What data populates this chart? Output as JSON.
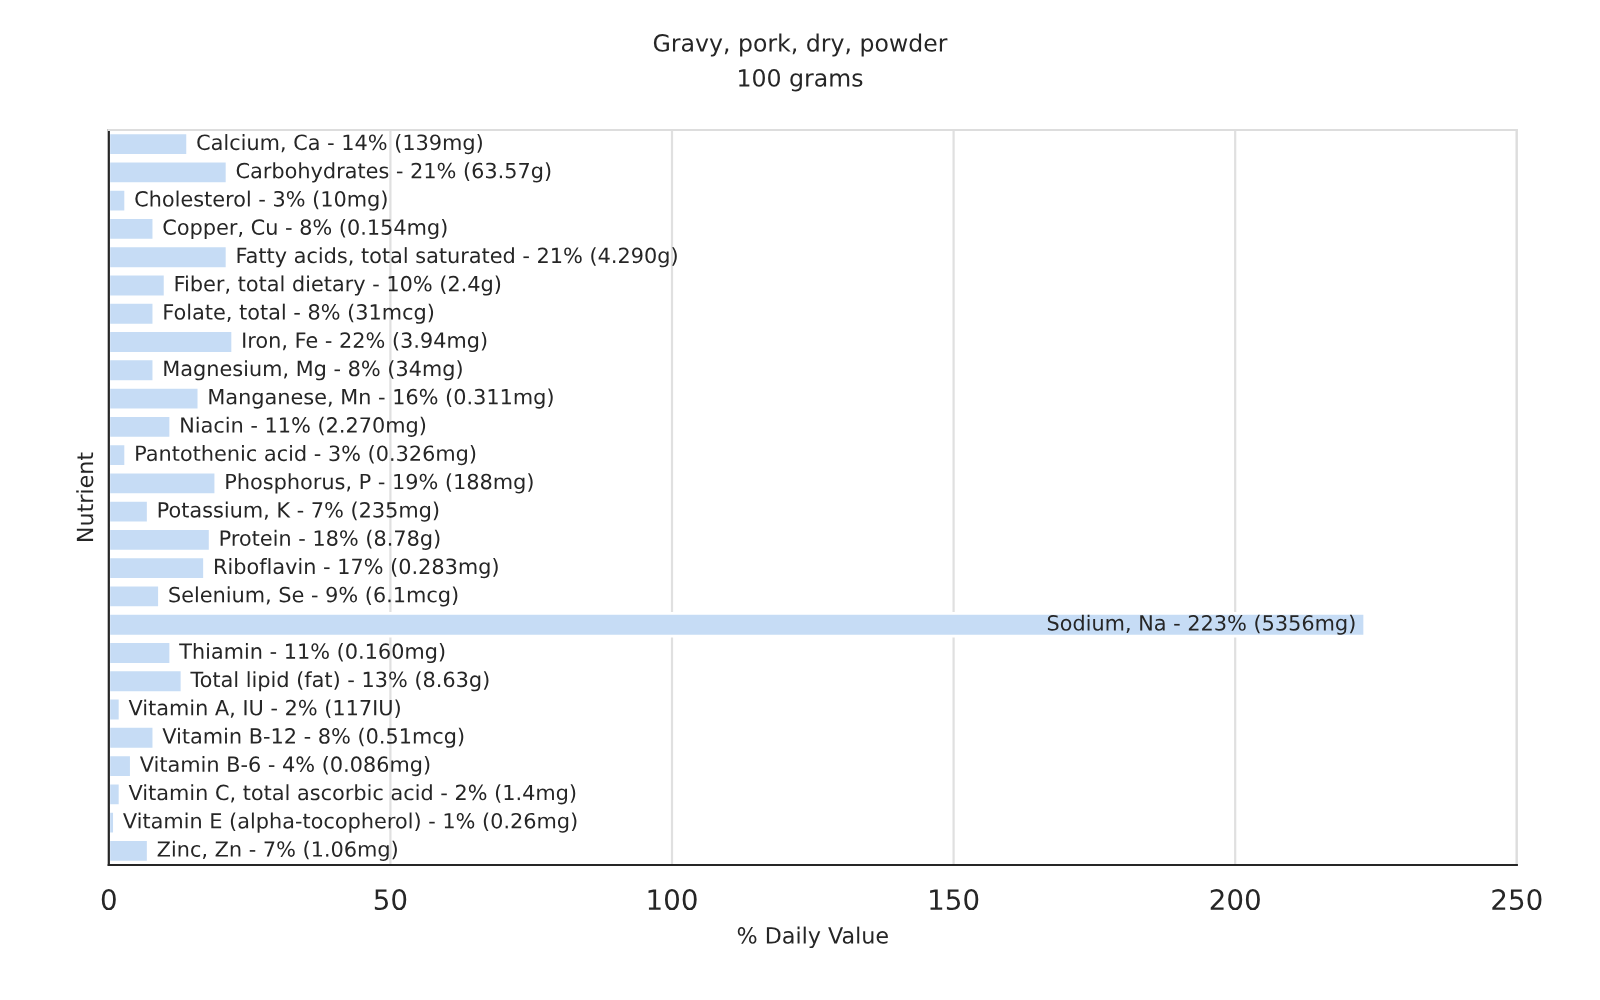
{
  "chart_data": {
    "type": "bar",
    "orientation": "horizontal",
    "title": "Gravy, pork, dry, powder",
    "subtitle": "100 grams",
    "xlabel": "% Daily Value",
    "ylabel": "Nutrient",
    "categories": [
      "Calcium, Ca -",
      "Carbohydrates -",
      "Cholesterol -",
      "Copper, Cu -",
      "Fatty acids, total saturated -",
      "Fiber, total dietary -",
      "Folate, total -",
      "Iron, Fe -",
      "Magnesium, Mg -",
      "Manganese, Mn -",
      "Niacin -",
      "Pantothenic acid -",
      "Phosphorus, P -",
      "Potassium, K -",
      "Protein -",
      "Riboflavin -",
      "Selenium, Se -",
      "Sodium, Na -",
      "Thiamin -",
      "Total lipid (fat) -",
      "Vitamin A, IU -",
      "Vitamin B-12 -",
      "Vitamin B-6 -",
      "Vitamin C, total ascorbic acid -",
      "Vitamin E (alpha-tocopherol) -",
      "Zinc, Zn -"
    ],
    "values": [
      14,
      21,
      3,
      8,
      21,
      10,
      8,
      22,
      8,
      16,
      11,
      3,
      19,
      7,
      18,
      17,
      9,
      223,
      11,
      13,
      2,
      8,
      4,
      2,
      1,
      7
    ],
    "value_labels": [
      "14% (139mg)",
      "21% (63.57g)",
      "3% (10mg)",
      "8% (0.154mg)",
      "21% (4.290g)",
      "10% (2.4g)",
      "8% (31mcg)",
      "22% (3.94mg)",
      "8% (34mg)",
      "16% (0.311mg)",
      "11% (2.270mg)",
      "3% (0.326mg)",
      "19% (188mg)",
      "7% (235mg)",
      "18% (8.78g)",
      "17% (0.283mg)",
      "9% (6.1mcg)",
      "223% (5356mg)",
      "11% (0.160mg)",
      "13% (8.63g)",
      "2% (117IU)",
      "8% (0.51mcg)",
      "4% (0.086mg)",
      "2% (1.4mg)",
      "1% (0.26mg)",
      "7% (1.06mg)"
    ],
    "color": "#c6dcf5",
    "xlim": [
      0,
      250
    ],
    "xticks": [
      0,
      50,
      100,
      150,
      200,
      250
    ],
    "grid": "x",
    "tick_labels": "x"
  }
}
